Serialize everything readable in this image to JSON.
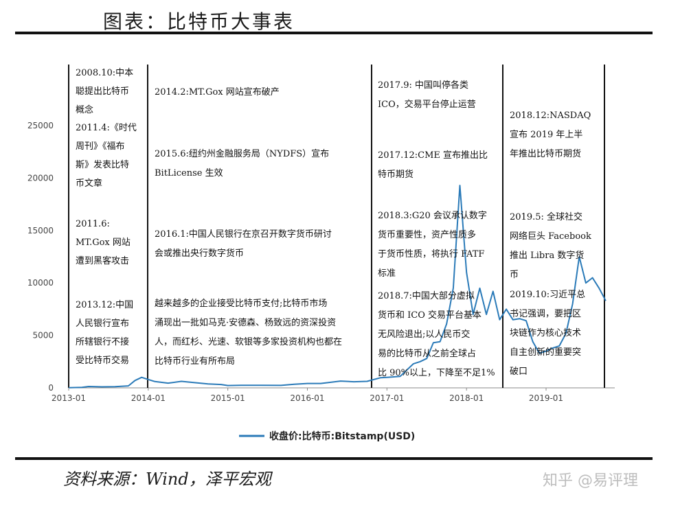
{
  "title": "图表：比特币大事表",
  "source": "资料来源：Wind，泽平宏观",
  "watermark": "知乎 @易评理",
  "colors": {
    "series": "#2a7ab8",
    "rule": "#111111"
  },
  "chart_data": {
    "type": "line",
    "title": "",
    "xlabel": "",
    "ylabel": "",
    "ylim": [
      0,
      25000
    ],
    "yticks": [
      0,
      5000,
      10000,
      15000,
      20000,
      25000
    ],
    "xticks": [
      "2013-01",
      "2014-01",
      "2015-01",
      "2016-01",
      "2017-01",
      "2018-01",
      "2019-01"
    ],
    "xrange": [
      "2013-01",
      "2019-10"
    ],
    "legend_position": "bottom",
    "series": [
      {
        "name": "收盘价:比特币:Bitstamp(USD)",
        "points": [
          [
            "2013-01",
            13
          ],
          [
            "2013-03",
            50
          ],
          [
            "2013-04",
            130
          ],
          [
            "2013-06",
            100
          ],
          [
            "2013-08",
            110
          ],
          [
            "2013-10",
            190
          ],
          [
            "2013-11",
            700
          ],
          [
            "2013-12",
            1000
          ],
          [
            "2014-01",
            800
          ],
          [
            "2014-02",
            600
          ],
          [
            "2014-04",
            450
          ],
          [
            "2014-06",
            620
          ],
          [
            "2014-08",
            500
          ],
          [
            "2014-10",
            380
          ],
          [
            "2014-12",
            320
          ],
          [
            "2015-01",
            220
          ],
          [
            "2015-03",
            250
          ],
          [
            "2015-06",
            250
          ],
          [
            "2015-09",
            235
          ],
          [
            "2015-11",
            350
          ],
          [
            "2016-01",
            420
          ],
          [
            "2016-03",
            420
          ],
          [
            "2016-06",
            650
          ],
          [
            "2016-08",
            580
          ],
          [
            "2016-10",
            620
          ],
          [
            "2016-12",
            960
          ],
          [
            "2017-01",
            1000
          ],
          [
            "2017-03",
            1100
          ],
          [
            "2017-05",
            2300
          ],
          [
            "2017-06",
            2500
          ],
          [
            "2017-07",
            2800
          ],
          [
            "2017-08",
            4300
          ],
          [
            "2017-09",
            4400
          ],
          [
            "2017-10",
            6100
          ],
          [
            "2017-11",
            9500
          ],
          [
            "2017-12",
            19300
          ],
          [
            "2018-01",
            11000
          ],
          [
            "2018-02",
            7000
          ],
          [
            "2018-03",
            9500
          ],
          [
            "2018-04",
            7000
          ],
          [
            "2018-05",
            9200
          ],
          [
            "2018-06",
            6500
          ],
          [
            "2018-07",
            7500
          ],
          [
            "2018-08",
            6500
          ],
          [
            "2018-09",
            6600
          ],
          [
            "2018-10",
            6400
          ],
          [
            "2018-11",
            4400
          ],
          [
            "2018-12",
            3300
          ],
          [
            "2019-01",
            3500
          ],
          [
            "2019-02",
            3800
          ],
          [
            "2019-03",
            4000
          ],
          [
            "2019-04",
            5200
          ],
          [
            "2019-05",
            8000
          ],
          [
            "2019-06",
            12500
          ],
          [
            "2019-07",
            10000
          ],
          [
            "2019-08",
            10500
          ],
          [
            "2019-09",
            9500
          ],
          [
            "2019-10",
            8300
          ]
        ]
      }
    ],
    "annotations": [
      {
        "column": 0,
        "lines": [
          "2008.10:中本",
          "聪提出比特币",
          "概念"
        ]
      },
      {
        "column": 0,
        "lines": [
          "2011.4:《时代",
          "周刊》《福布",
          "斯》发表比特",
          "币文章"
        ]
      },
      {
        "column": 0,
        "lines": [
          "2011.6:",
          "MT.Gox 网站",
          "遭到黑客攻击"
        ]
      },
      {
        "column": 0,
        "lines": [
          "2013.12:中国",
          "人民银行宣布",
          "所辖银行不接",
          "受比特币交易"
        ]
      },
      {
        "column": 1,
        "lines": [
          "2014.2:MT.Gox 网站宣布破产"
        ]
      },
      {
        "column": 1,
        "lines": [
          "2015.6:纽约州金融服务局（NYDFS）宣布",
          "BitLicense 生效"
        ]
      },
      {
        "column": 1,
        "lines": [
          "2016.1:中国人民银行在京召开数字货币研讨",
          "会或推出央行数字货币"
        ]
      },
      {
        "column": 1,
        "lines": [
          "越来越多的企业接受比特币支付;比特币市场",
          "涌现出一批如马克·安德森、杨致远的资深投资",
          "人，而红杉、光速、软银等多家投资机构也都在",
          "比特币行业有所布局"
        ]
      },
      {
        "column": 2,
        "lines": [
          "2017.9: 中国叫停各类",
          "ICO，交易平台停止运营"
        ]
      },
      {
        "column": 2,
        "lines": [
          "2017.12:CME 宣布推出比",
          "特币期货"
        ]
      },
      {
        "column": 2,
        "lines": [
          "2018.3:G20 会议承认数字",
          "货币重要性，资产性质多",
          "于货币性质，将执行 FATF",
          "标准"
        ]
      },
      {
        "column": 2,
        "lines": [
          "2018.7:中国大部分虚拟",
          "货币和 ICO 交易平台基本",
          "无风险退出;以人民币交",
          "易的比特币从之前全球占",
          "比 90%以上，下降至不足1%"
        ]
      },
      {
        "column": 3,
        "lines": [
          "2018.12:NASDAQ",
          "宣布 2019 年上半",
          "年推出比特币期货"
        ]
      },
      {
        "column": 3,
        "lines": [
          "2019.5: 全球社交",
          "网络巨头 Facebook",
          "推出 Libra 数字货",
          "币"
        ]
      },
      {
        "column": 3,
        "lines": [
          "2019.10:习近平总",
          "书记强调，要把区",
          "块链作为核心技术",
          "自主创新的重要突",
          "破口"
        ]
      }
    ]
  }
}
